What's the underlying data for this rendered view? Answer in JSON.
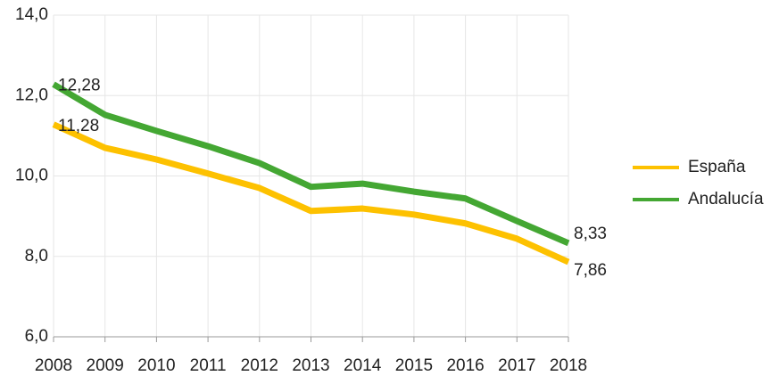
{
  "chart_data": {
    "type": "line",
    "categories": [
      "2008",
      "2009",
      "2010",
      "2011",
      "2012",
      "2013",
      "2014",
      "2015",
      "2016",
      "2017",
      "2018"
    ],
    "series": [
      {
        "name": "España",
        "color": "#fdc100",
        "values": [
          11.28,
          10.7,
          10.41,
          10.06,
          9.7,
          9.13,
          9.19,
          9.04,
          8.82,
          8.44,
          7.86
        ],
        "value_labels": [
          "11,28",
          null,
          null,
          null,
          null,
          null,
          null,
          null,
          null,
          null,
          "7,86"
        ]
      },
      {
        "name": "Andalucía",
        "color": "#44a733",
        "values": [
          12.28,
          11.52,
          11.12,
          10.74,
          10.32,
          9.73,
          9.81,
          9.61,
          9.44,
          8.88,
          8.33
        ],
        "value_labels": [
          "12,28",
          null,
          null,
          null,
          null,
          null,
          null,
          null,
          null,
          null,
          "8,33"
        ]
      }
    ],
    "ylim": [
      6,
      14
    ],
    "yticks": [
      {
        "value": 6,
        "label": "6,0"
      },
      {
        "value": 8,
        "label": "8,0"
      },
      {
        "value": 10,
        "label": "10,0"
      },
      {
        "value": 12,
        "label": "12,0"
      },
      {
        "value": 14,
        "label": "14,0"
      }
    ],
    "grid": true,
    "legend": "right"
  }
}
